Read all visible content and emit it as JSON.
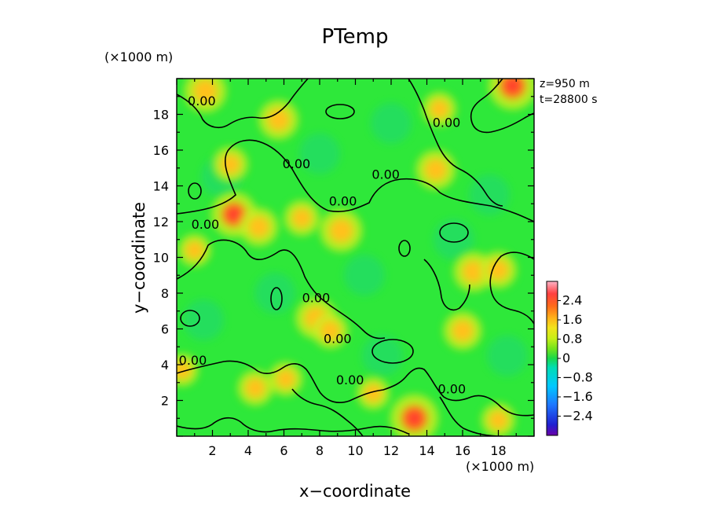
{
  "chart_data": {
    "type": "heatmap",
    "title": "PTemp",
    "xlabel": "x−coordinate",
    "ylabel": "y−coordinate",
    "x_unit": "(×1000 m)",
    "y_unit": "(×1000 m)",
    "xlim": [
      0,
      20
    ],
    "ylim": [
      0,
      20
    ],
    "x_ticks": [
      2,
      4,
      6,
      8,
      10,
      12,
      14,
      16,
      18
    ],
    "y_ticks": [
      2,
      4,
      6,
      8,
      10,
      12,
      14,
      16,
      18
    ],
    "annotations": [
      "z=950 m",
      "t=28800 s"
    ],
    "contour_level": 0.0,
    "contour_labels": [
      {
        "x": 0.9,
        "y": 4.0,
        "text": "0.00"
      },
      {
        "x": 1.6,
        "y": 11.6,
        "text": "0.00"
      },
      {
        "x": 9.3,
        "y": 12.9,
        "text": "0.00"
      },
      {
        "x": 6.7,
        "y": 15.0,
        "text": "0.00"
      },
      {
        "x": 11.7,
        "y": 14.4,
        "text": "0.00"
      },
      {
        "x": 1.4,
        "y": 18.5,
        "text": "0.00"
      },
      {
        "x": 7.8,
        "y": 7.5,
        "text": "0.00"
      },
      {
        "x": 9.0,
        "y": 5.2,
        "text": "0.00"
      },
      {
        "x": 9.7,
        "y": 2.9,
        "text": "0.00"
      },
      {
        "x": 15.4,
        "y": 2.4,
        "text": "0.00"
      },
      {
        "x": 15.1,
        "y": 17.3,
        "text": "0.00"
      }
    ],
    "colorbar": {
      "ticks": [
        2.4,
        1.6,
        0.8,
        0,
        -0.8,
        -1.6,
        -2.4
      ],
      "range": [
        -3.2,
        3.2
      ]
    },
    "warm_anomalies": [
      {
        "x": 13.3,
        "y": 1.0,
        "v": 2.2
      },
      {
        "x": 3.2,
        "y": 12.4,
        "v": 2.0
      },
      {
        "x": 9.2,
        "y": 11.5,
        "v": 1.8
      },
      {
        "x": 7.8,
        "y": 6.6,
        "v": 1.7
      },
      {
        "x": 18.8,
        "y": 19.6,
        "v": 2.2
      },
      {
        "x": 1.6,
        "y": 19.3,
        "v": 1.8
      },
      {
        "x": 5.7,
        "y": 17.7,
        "v": 1.6
      },
      {
        "x": 14.5,
        "y": 14.9,
        "v": 1.6
      },
      {
        "x": 4.6,
        "y": 11.7,
        "v": 1.5
      },
      {
        "x": 16.6,
        "y": 9.2,
        "v": 1.6
      },
      {
        "x": 18.0,
        "y": 9.3,
        "v": 1.4
      },
      {
        "x": 16.0,
        "y": 5.9,
        "v": 1.5
      },
      {
        "x": 4.4,
        "y": 2.7,
        "v": 1.3
      },
      {
        "x": 6.1,
        "y": 3.2,
        "v": 1.2
      },
      {
        "x": 0.3,
        "y": 3.7,
        "v": 1.1
      },
      {
        "x": 18.0,
        "y": 0.9,
        "v": 1.2
      },
      {
        "x": 8.6,
        "y": 5.9,
        "v": 1.3
      },
      {
        "x": 3.0,
        "y": 15.2,
        "v": 1.3
      },
      {
        "x": 14.7,
        "y": 18.3,
        "v": 1.2
      },
      {
        "x": 1.0,
        "y": 10.4,
        "v": 1.1
      },
      {
        "x": 11.0,
        "y": 2.4,
        "v": 1.1
      },
      {
        "x": 7.0,
        "y": 12.2,
        "v": 1.3
      }
    ]
  }
}
